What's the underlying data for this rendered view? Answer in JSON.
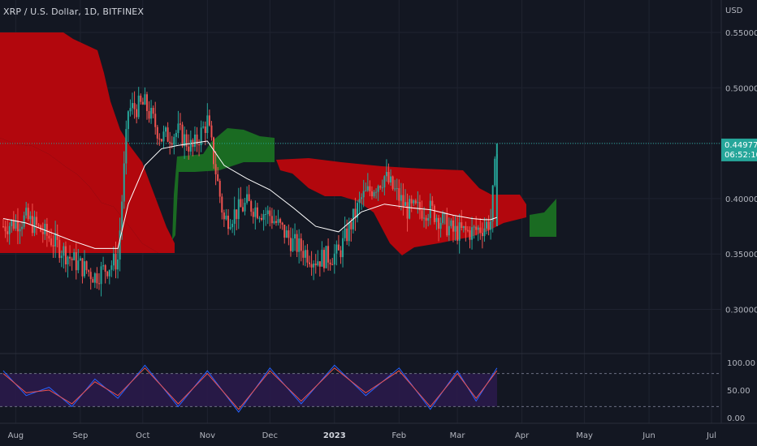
{
  "header": {
    "symbol_title": "XRP / U.S. Dollar, 1D, BITFINEX"
  },
  "price_axis": {
    "currency": "USD",
    "ticks": [
      "0.55000",
      "0.50000",
      "0.40000",
      "0.35000",
      "0.30000"
    ],
    "tick_values": [
      0.55,
      0.5,
      0.4,
      0.35,
      0.3
    ]
  },
  "last_price": {
    "value": "0.44977",
    "countdown": "06:52:10"
  },
  "oscillator_axis": {
    "ticks": [
      "100.00",
      "50.00",
      "0.00"
    ],
    "tick_values": [
      100,
      50,
      0
    ],
    "band_upper": 80,
    "band_lower": 20
  },
  "time_axis": {
    "labels": [
      "Aug",
      "Sep",
      "Oct",
      "Nov",
      "Dec",
      "2023",
      "Feb",
      "Mar",
      "Apr",
      "May",
      "Jun",
      "Jul"
    ],
    "year_label": "2023"
  },
  "colors": {
    "background": "#131722",
    "grid": "#1f2330",
    "bull_candle": "#26a69a",
    "bear_candle": "#ef5350",
    "cloud_bear": "#b2070d",
    "cloud_bull": "#1a6b22",
    "moving_average": "#ffffff",
    "last_price_tag": "#26a69a",
    "oscillator_band": "#2a1a4a",
    "stoch_k": "#2962ff",
    "stoch_d": "#ef5350"
  },
  "chart_data": [
    {
      "type": "candlestick",
      "title": "XRP / U.S. Dollar, 1D, BITFINEX",
      "ylabel": "USD",
      "ylim": [
        0.28,
        0.57
      ],
      "x": [
        "2022-07-26",
        "2022-08-06",
        "2022-08-17",
        "2022-08-28",
        "2022-09-08",
        "2022-09-19",
        "2022-09-24",
        "2022-10-02",
        "2022-10-10",
        "2022-10-18",
        "2022-10-25",
        "2022-11-01",
        "2022-11-09",
        "2022-11-20",
        "2022-12-01",
        "2022-12-12",
        "2022-12-23",
        "2023-01-03",
        "2023-01-14",
        "2023-01-25",
        "2023-02-05",
        "2023-02-16",
        "2023-02-27",
        "2023-03-08",
        "2023-03-14",
        "2023-03-17",
        "2023-03-20"
      ],
      "series": [
        {
          "name": "close",
          "values": [
            0.375,
            0.382,
            0.365,
            0.345,
            0.33,
            0.345,
            0.48,
            0.485,
            0.455,
            0.46,
            0.445,
            0.47,
            0.38,
            0.395,
            0.385,
            0.36,
            0.345,
            0.35,
            0.4,
            0.42,
            0.39,
            0.39,
            0.37,
            0.37,
            0.375,
            0.38,
            0.44977
          ]
        },
        {
          "name": "moving_average",
          "values": [
            0.382,
            0.378,
            0.37,
            0.362,
            0.355,
            0.355,
            0.395,
            0.43,
            0.445,
            0.448,
            0.45,
            0.452,
            0.43,
            0.418,
            0.408,
            0.392,
            0.375,
            0.37,
            0.388,
            0.395,
            0.392,
            0.39,
            0.385,
            0.382,
            0.381,
            0.381,
            0.383
          ]
        }
      ]
    },
    {
      "type": "line",
      "ylim": [
        0,
        100
      ],
      "x": [
        "2022-07-26",
        "2022-08-06",
        "2022-08-17",
        "2022-08-28",
        "2022-09-08",
        "2022-09-19",
        "2022-10-02",
        "2022-10-18",
        "2022-11-01",
        "2022-11-16",
        "2022-12-01",
        "2022-12-16",
        "2023-01-01",
        "2023-01-16",
        "2023-02-01",
        "2023-02-16",
        "2023-03-01",
        "2023-03-10",
        "2023-03-20"
      ],
      "series": [
        {
          "name": "%K",
          "values": [
            85,
            40,
            55,
            20,
            70,
            35,
            95,
            20,
            85,
            10,
            90,
            25,
            95,
            40,
            90,
            15,
            85,
            30,
            90
          ]
        },
        {
          "name": "%D",
          "values": [
            80,
            45,
            50,
            25,
            65,
            40,
            90,
            25,
            80,
            15,
            85,
            30,
            90,
            45,
            85,
            20,
            80,
            35,
            85
          ]
        }
      ]
    }
  ]
}
